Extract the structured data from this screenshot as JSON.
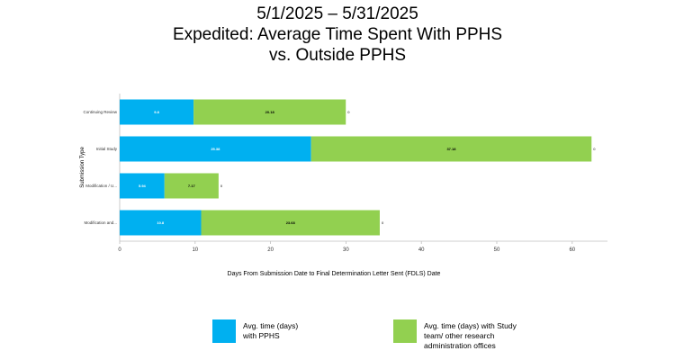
{
  "chart_data": {
    "type": "bar",
    "orientation": "horizontal",
    "stacked": true,
    "title_lines": [
      "5/1/2025 – 5/31/2025",
      "Expedited: Average Time Spent With PPHS",
      "vs. Outside PPHS"
    ],
    "categories": [
      "Continuing Review",
      "Initial Study",
      "Modification / U...",
      "Modification and..."
    ],
    "series": [
      {
        "name": "Avg. time (days)\nwith PPHS",
        "color": "#00B0F0",
        "values": [
          9.8,
          25.38,
          5.94,
          10.8
        ]
      },
      {
        "name": "Avg. time (days) with Study\nteam/ other research\nadministration offices",
        "color": "#92D050",
        "values": [
          20.18,
          37.18,
          7.17,
          23.68
        ]
      }
    ],
    "segment_labels": [
      [
        "9.8",
        "20.18",
        "0"
      ],
      [
        "25.38",
        "37.18",
        "0"
      ],
      [
        "5.94",
        "7.17",
        "0"
      ],
      [
        "10.8",
        "23.68",
        "0"
      ]
    ],
    "xlabel": "Days From Submission Date to Final Determination Letter Sent (FDLS) Date",
    "ylabel": "Submission Type",
    "xlim": [
      0,
      65
    ],
    "xticks": [
      0,
      10,
      20,
      30,
      40,
      50,
      60
    ],
    "grid": false,
    "legend_position": "bottom"
  }
}
